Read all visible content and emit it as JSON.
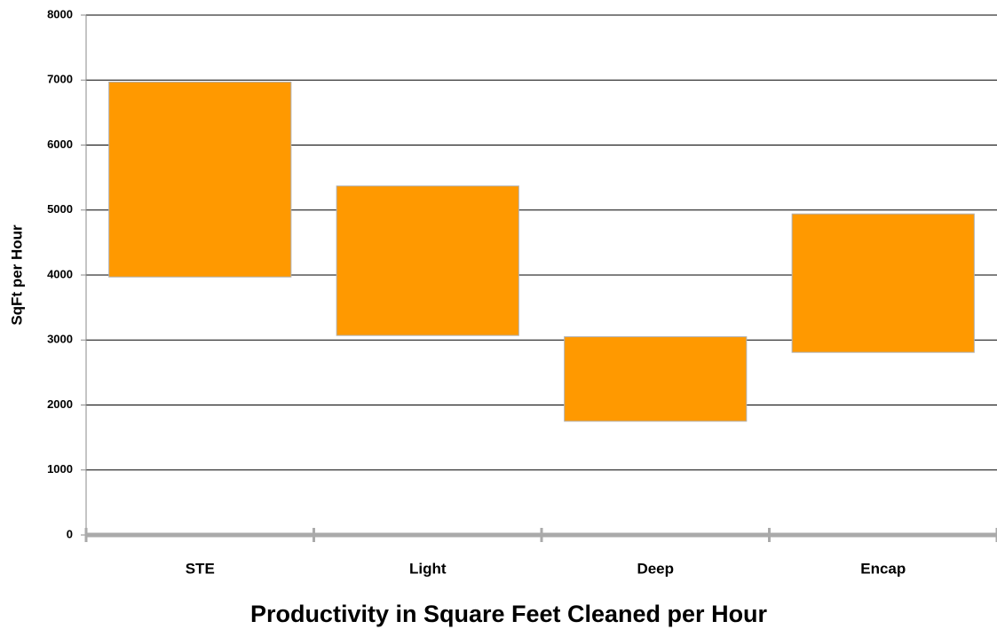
{
  "chart_data": {
    "type": "floating_bar",
    "x_title": "Productivity in Square Feet Cleaned per Hour",
    "y_title": "SqFt  per  Hour",
    "categories": [
      "STE",
      "Light",
      "Deep",
      "Encap"
    ],
    "low": [
      3970,
      3070,
      1750,
      2810
    ],
    "high": [
      6970,
      5370,
      3050,
      4940
    ],
    "color": "#ff9900",
    "ylim": [
      0,
      8000
    ],
    "yticks": [
      0,
      1000,
      2000,
      3000,
      4000,
      5000,
      6000,
      7000,
      8000
    ],
    "grid": true
  }
}
